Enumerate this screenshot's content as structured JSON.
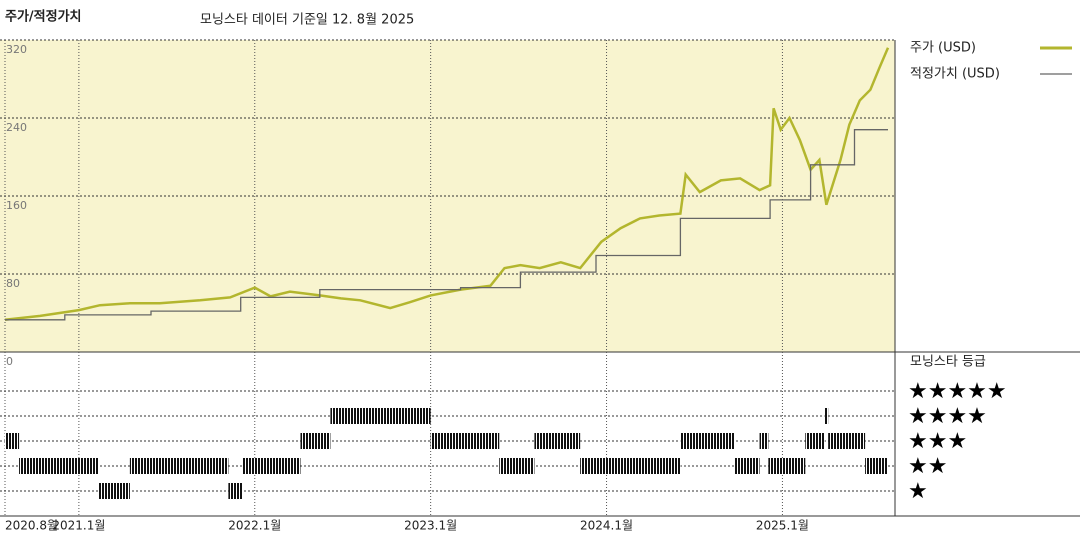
{
  "chart_data": [
    {
      "type": "line",
      "title": "주가/적정가치",
      "subtitle": "모닝스타 데이터 기준일 12. 8월 2025",
      "xlim": [
        2020.58,
        2025.64
      ],
      "xticks": [
        {
          "value": 2020.58,
          "label": "2020.8월"
        },
        {
          "value": 2021.0,
          "label": "2021.1월"
        },
        {
          "value": 2022.0,
          "label": "2022.1월"
        },
        {
          "value": 2023.0,
          "label": "2023.1월"
        },
        {
          "value": 2024.0,
          "label": "2024.1월"
        },
        {
          "value": 2025.0,
          "label": "2025.1월"
        }
      ],
      "ylim": [
        0,
        320
      ],
      "yticks": [
        0,
        80,
        160,
        240,
        320
      ],
      "grid": true,
      "series": [
        {
          "name": "주가 (USD)",
          "color": "#b3b62e",
          "x": [
            2020.58,
            2020.78,
            2021.0,
            2021.12,
            2021.29,
            2021.46,
            2021.69,
            2021.86,
            2022.0,
            2022.09,
            2022.2,
            2022.37,
            2022.49,
            2022.6,
            2022.77,
            2022.88,
            2023.0,
            2023.17,
            2023.34,
            2023.42,
            2023.51,
            2023.62,
            2023.74,
            2023.85,
            2023.97,
            2024.08,
            2024.19,
            2024.3,
            2024.42,
            2024.45,
            2024.53,
            2024.65,
            2024.76,
            2024.87,
            2024.93,
            2024.95,
            2024.99,
            2025.04,
            2025.1,
            2025.16,
            2025.21,
            2025.25,
            2025.33,
            2025.38,
            2025.44,
            2025.5,
            2025.55,
            2025.6
          ],
          "values": [
            33,
            37,
            43,
            48,
            50,
            50,
            53,
            56,
            66,
            57,
            62,
            58,
            55,
            53,
            45,
            51,
            58,
            64,
            68,
            86,
            89,
            86,
            92,
            86,
            113,
            127,
            137,
            140,
            142,
            182,
            164,
            176,
            178,
            166,
            171,
            250,
            228,
            240,
            217,
            187,
            197,
            151,
            197,
            233,
            258,
            269,
            291,
            312
          ]
        },
        {
          "name": "적정가치 (USD)",
          "color": "#666666",
          "x": [
            2020.58,
            2020.92,
            2020.92,
            2021.41,
            2021.41,
            2021.92,
            2021.92,
            2022.37,
            2022.37,
            2023.17,
            2023.17,
            2023.51,
            2023.51,
            2023.94,
            2023.94,
            2024.42,
            2024.42,
            2024.93,
            2024.93,
            2025.16,
            2025.16,
            2025.41,
            2025.41,
            2025.6
          ],
          "values": [
            33,
            33,
            38,
            38,
            42,
            42,
            56,
            56,
            64,
            64,
            66,
            66,
            82,
            82,
            99,
            99,
            137,
            137,
            156,
            156,
            192,
            192,
            228,
            228
          ]
        }
      ]
    },
    {
      "type": "timeline",
      "title": "모닝스타 등급",
      "xlim": [
        2020.58,
        2025.64
      ],
      "levels": [
        {
          "value": 5,
          "label": "★★★★★"
        },
        {
          "value": 4,
          "label": "★★★★"
        },
        {
          "value": 3,
          "label": "★★★"
        },
        {
          "value": 2,
          "label": "★★"
        },
        {
          "value": 1,
          "label": "★"
        }
      ],
      "segments": [
        {
          "start": 2020.58,
          "end": 2020.66,
          "stars": 3
        },
        {
          "start": 2020.66,
          "end": 2021.11,
          "stars": 2
        },
        {
          "start": 2021.11,
          "end": 2021.29,
          "stars": 1
        },
        {
          "start": 2021.29,
          "end": 2021.85,
          "stars": 2
        },
        {
          "start": 2021.85,
          "end": 2021.93,
          "stars": 1
        },
        {
          "start": 2021.93,
          "end": 2022.26,
          "stars": 2
        },
        {
          "start": 2022.26,
          "end": 2022.43,
          "stars": 3
        },
        {
          "start": 2022.43,
          "end": 2023.0,
          "stars": 4
        },
        {
          "start": 2023.0,
          "end": 2023.39,
          "stars": 3
        },
        {
          "start": 2023.39,
          "end": 2023.59,
          "stars": 2
        },
        {
          "start": 2023.59,
          "end": 2023.85,
          "stars": 3
        },
        {
          "start": 2023.85,
          "end": 2024.42,
          "stars": 2
        },
        {
          "start": 2024.42,
          "end": 2024.73,
          "stars": 3
        },
        {
          "start": 2024.73,
          "end": 2024.87,
          "stars": 2
        },
        {
          "start": 2024.87,
          "end": 2024.92,
          "stars": 3
        },
        {
          "start": 2024.92,
          "end": 2025.13,
          "stars": 2
        },
        {
          "start": 2025.13,
          "end": 2025.24,
          "stars": 3
        },
        {
          "start": 2025.24,
          "end": 2025.26,
          "stars": 4
        },
        {
          "start": 2025.26,
          "end": 2025.47,
          "stars": 3
        },
        {
          "start": 2025.47,
          "end": 2025.6,
          "stars": 2
        }
      ]
    }
  ]
}
